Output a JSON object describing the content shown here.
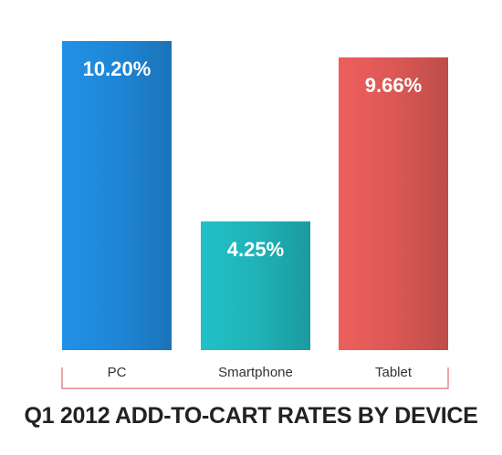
{
  "chart_data": {
    "type": "bar",
    "title": "Q1 2012 ADD-TO-CART RATES BY DEVICE",
    "categories": [
      "PC",
      "Smartphone",
      "Tablet"
    ],
    "values": [
      10.2,
      4.25,
      9.66
    ],
    "value_labels": [
      "10.20%",
      "4.25%",
      "9.66%"
    ],
    "colors": [
      "#1f86d6",
      "#1fb3b8",
      "#dc5855"
    ],
    "bracket_color": "#e46a6a",
    "xlabel": "",
    "ylabel": "",
    "ylim": [
      0,
      10.2
    ],
    "grid": false,
    "legend": "none"
  }
}
